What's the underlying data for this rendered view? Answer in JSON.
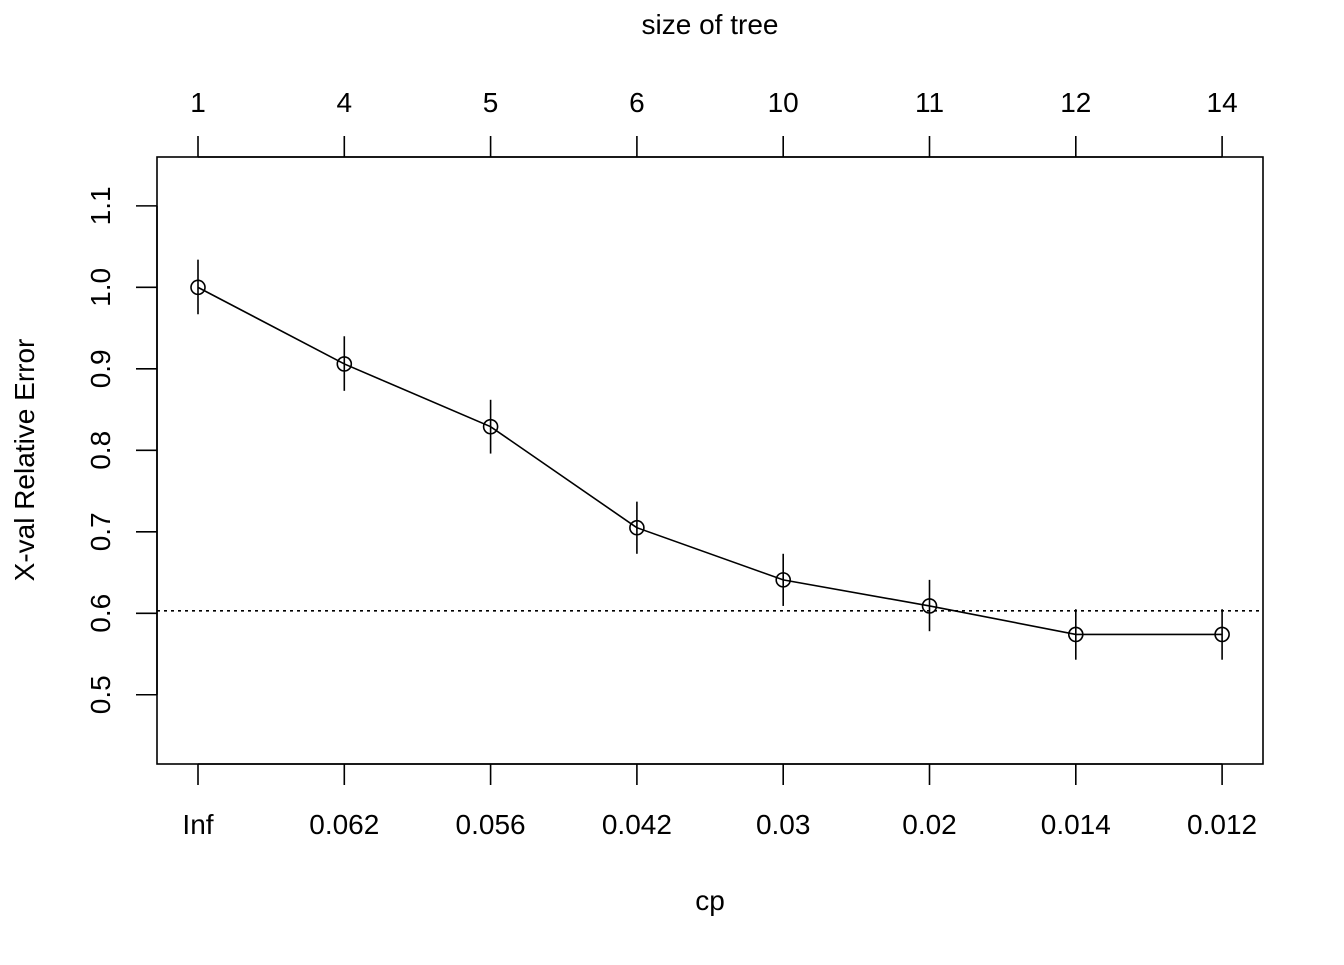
{
  "chart_data": {
    "type": "line",
    "xlabel": "cp",
    "ylabel": "X-val Relative Error",
    "top_axis_label": "size of tree",
    "x_categories": [
      "Inf",
      "0.062",
      "0.056",
      "0.042",
      "0.03",
      "0.02",
      "0.014",
      "0.012"
    ],
    "top_ticks": [
      "1",
      "4",
      "5",
      "6",
      "10",
      "11",
      "12",
      "14"
    ],
    "y_ticks": [
      "0.5",
      "0.6",
      "0.7",
      "0.8",
      "0.9",
      "1.0",
      "1.1"
    ],
    "ylim": [
      0.415,
      1.16
    ],
    "series": [
      {
        "values": [
          1.0,
          0.906,
          0.829,
          0.705,
          0.641,
          0.609,
          0.574,
          0.574
        ],
        "error_low": [
          0.967,
          0.873,
          0.796,
          0.673,
          0.609,
          0.578,
          0.543,
          0.543
        ],
        "error_high": [
          1.034,
          0.94,
          0.862,
          0.737,
          0.673,
          0.641,
          0.605,
          0.605
        ]
      }
    ],
    "reference_line": 0.603,
    "reference_line_style": "dotted",
    "grid": false,
    "legend": "none"
  }
}
